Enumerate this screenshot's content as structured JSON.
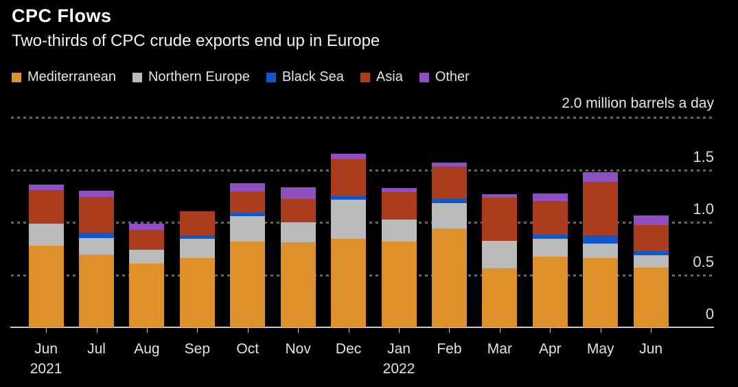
{
  "header": {
    "title": "CPC Flows",
    "subtitle": "Two-thirds of CPC crude exports end up in Europe"
  },
  "chart_data": {
    "type": "bar",
    "stacked": true,
    "title": "CPC Flows",
    "subtitle": "Two-thirds of CPC crude exports end up in Europe",
    "unit_label": "2.0 million barrels a day",
    "ylabel": "million barrels a day",
    "ylim": [
      0,
      2.0
    ],
    "grid": "horizontal-dotted",
    "legend_position": "top",
    "categories": [
      "Jun",
      "Jul",
      "Aug",
      "Sep",
      "Oct",
      "Nov",
      "Dec",
      "Jan",
      "Feb",
      "Mar",
      "Apr",
      "May",
      "Jun"
    ],
    "year_labels": [
      {
        "index": 0,
        "label": "2021"
      },
      {
        "index": 7,
        "label": "2022"
      }
    ],
    "y_ticks": [
      {
        "value": 0,
        "label": "0"
      },
      {
        "value": 0.5,
        "label": "0.5"
      },
      {
        "value": 1.0,
        "label": "1.0"
      },
      {
        "value": 1.5,
        "label": "1.5"
      }
    ],
    "grid_values": [
      0.5,
      1.0,
      1.5,
      2.0
    ],
    "series": [
      {
        "name": "Mediterranean",
        "color": "#DE912B",
        "values": [
          0.78,
          0.69,
          0.61,
          0.66,
          0.82,
          0.81,
          0.84,
          0.82,
          0.94,
          0.56,
          0.67,
          0.66,
          0.57
        ]
      },
      {
        "name": "Northern Europe",
        "color": "#BBBBBD",
        "values": [
          0.21,
          0.16,
          0.13,
          0.18,
          0.24,
          0.19,
          0.37,
          0.21,
          0.24,
          0.26,
          0.17,
          0.14,
          0.12
        ]
      },
      {
        "name": "Black Sea",
        "color": "#1058C8",
        "values": [
          0.0,
          0.05,
          0.0,
          0.03,
          0.03,
          0.0,
          0.03,
          0.0,
          0.04,
          0.0,
          0.04,
          0.08,
          0.04
        ]
      },
      {
        "name": "Asia",
        "color": "#AC3C1E",
        "values": [
          0.32,
          0.34,
          0.19,
          0.23,
          0.2,
          0.22,
          0.35,
          0.26,
          0.31,
          0.41,
          0.32,
          0.51,
          0.25
        ]
      },
      {
        "name": "Other",
        "color": "#8E50C0",
        "values": [
          0.05,
          0.06,
          0.06,
          0.0,
          0.08,
          0.11,
          0.05,
          0.04,
          0.04,
          0.03,
          0.07,
          0.09,
          0.09
        ]
      }
    ],
    "totals": [
      1.36,
      1.3,
      0.99,
      1.1,
      1.37,
      1.33,
      1.64,
      1.33,
      1.57,
      1.26,
      1.27,
      1.48,
      1.07
    ]
  },
  "colors": {
    "background": "#000000",
    "gridline": "#666666",
    "baseline": "#C9C9C9",
    "title_text": "#FFFFFF",
    "axis_text": "#DCDCDC"
  }
}
